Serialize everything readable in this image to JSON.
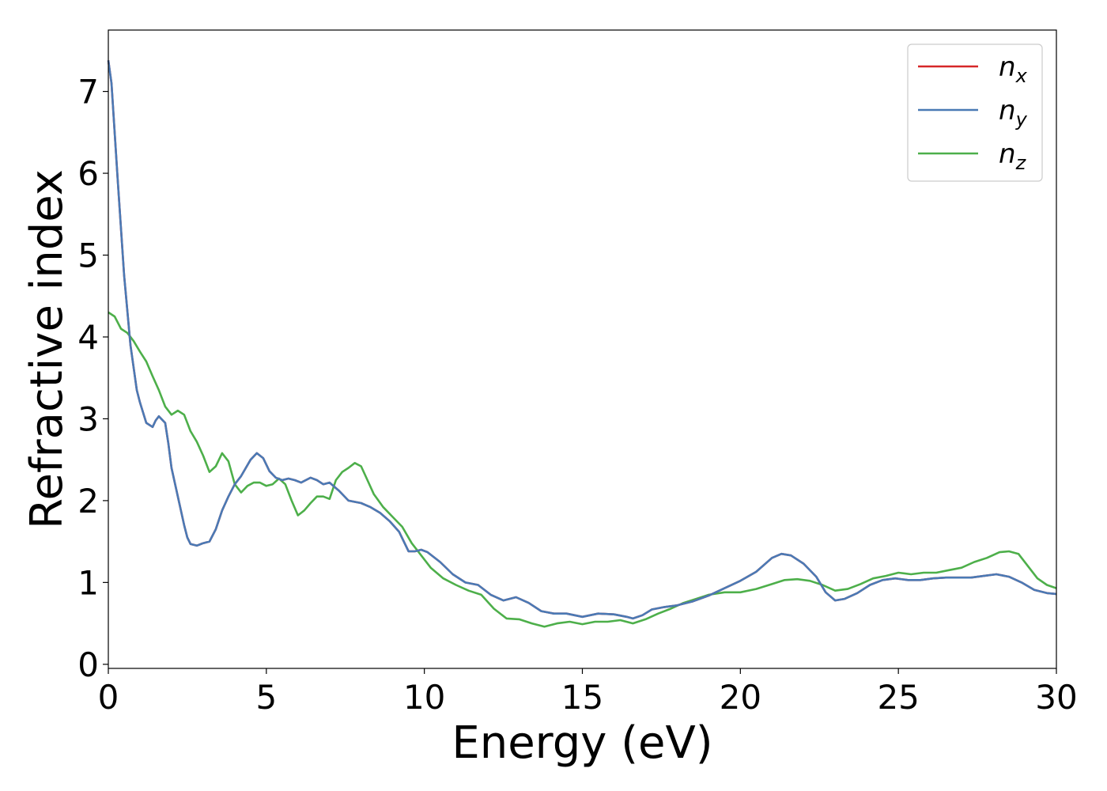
{
  "chart_data": {
    "type": "line",
    "xlabel": "Energy (eV)",
    "ylabel": "Refractive index",
    "xlim": [
      0,
      30
    ],
    "ylim": [
      -0.05,
      7.75
    ],
    "xticks": [
      "0",
      "5",
      "10",
      "15",
      "20",
      "25",
      "30"
    ],
    "yticks": [
      "0",
      "1",
      "2",
      "3",
      "4",
      "5",
      "6",
      "7"
    ],
    "grid": false,
    "legend_position": "top-right",
    "series": [
      {
        "name": "n",
        "sub": "x",
        "color": "#d62728",
        "x": [
          0,
          0.1,
          0.3,
          0.5,
          0.7,
          0.9,
          1.0,
          1.2,
          1.4,
          1.5,
          1.6,
          1.8,
          1.9,
          2.0,
          2.2,
          2.4,
          2.5,
          2.6,
          2.8,
          3.0,
          3.2,
          3.4,
          3.6,
          3.8,
          4.0,
          4.2,
          4.5,
          4.7,
          4.9,
          5.1,
          5.3,
          5.5,
          5.7,
          5.9,
          6.1,
          6.4,
          6.6,
          6.8,
          7.0,
          7.3,
          7.6,
          8.0,
          8.3,
          8.6,
          8.9,
          9.2,
          9.5,
          9.7,
          9.9,
          10.1,
          10.5,
          10.9,
          11.3,
          11.7,
          12.1,
          12.5,
          12.9,
          13.3,
          13.7,
          14.1,
          14.5,
          15.0,
          15.5,
          16.0,
          16.4,
          16.6,
          16.9,
          17.2,
          17.6,
          18.0,
          18.5,
          19.0,
          19.5,
          20.0,
          20.5,
          21.0,
          21.3,
          21.6,
          22.0,
          22.4,
          22.7,
          23.0,
          23.3,
          23.7,
          24.1,
          24.5,
          24.9,
          25.3,
          25.7,
          26.1,
          26.5,
          26.9,
          27.3,
          27.7,
          28.1,
          28.5,
          28.9,
          29.3,
          29.7,
          30.0
        ],
        "y": [
          7.38,
          7.1,
          5.9,
          4.75,
          3.9,
          3.35,
          3.2,
          2.95,
          2.9,
          2.98,
          3.03,
          2.95,
          2.7,
          2.4,
          2.05,
          1.7,
          1.55,
          1.47,
          1.45,
          1.48,
          1.5,
          1.65,
          1.88,
          2.05,
          2.2,
          2.3,
          2.5,
          2.58,
          2.52,
          2.36,
          2.28,
          2.25,
          2.27,
          2.25,
          2.22,
          2.28,
          2.25,
          2.2,
          2.22,
          2.12,
          2.0,
          1.97,
          1.92,
          1.85,
          1.75,
          1.62,
          1.38,
          1.38,
          1.4,
          1.37,
          1.25,
          1.1,
          1.0,
          0.97,
          0.85,
          0.78,
          0.82,
          0.75,
          0.65,
          0.62,
          0.62,
          0.58,
          0.62,
          0.61,
          0.58,
          0.56,
          0.6,
          0.67,
          0.7,
          0.72,
          0.77,
          0.84,
          0.93,
          1.02,
          1.13,
          1.3,
          1.35,
          1.33,
          1.23,
          1.07,
          0.88,
          0.78,
          0.8,
          0.87,
          0.97,
          1.03,
          1.05,
          1.03,
          1.03,
          1.05,
          1.06,
          1.06,
          1.06,
          1.08,
          1.1,
          1.07,
          1.0,
          0.91,
          0.87,
          0.86
        ]
      },
      {
        "name": "n",
        "sub": "y",
        "color": "#4a7ab5",
        "x": [
          0,
          0.1,
          0.3,
          0.5,
          0.7,
          0.9,
          1.0,
          1.2,
          1.4,
          1.5,
          1.6,
          1.8,
          1.9,
          2.0,
          2.2,
          2.4,
          2.5,
          2.6,
          2.8,
          3.0,
          3.2,
          3.4,
          3.6,
          3.8,
          4.0,
          4.2,
          4.5,
          4.7,
          4.9,
          5.1,
          5.3,
          5.5,
          5.7,
          5.9,
          6.1,
          6.4,
          6.6,
          6.8,
          7.0,
          7.3,
          7.6,
          8.0,
          8.3,
          8.6,
          8.9,
          9.2,
          9.5,
          9.7,
          9.9,
          10.1,
          10.5,
          10.9,
          11.3,
          11.7,
          12.1,
          12.5,
          12.9,
          13.3,
          13.7,
          14.1,
          14.5,
          15.0,
          15.5,
          16.0,
          16.4,
          16.6,
          16.9,
          17.2,
          17.6,
          18.0,
          18.5,
          19.0,
          19.5,
          20.0,
          20.5,
          21.0,
          21.3,
          21.6,
          22.0,
          22.4,
          22.7,
          23.0,
          23.3,
          23.7,
          24.1,
          24.5,
          24.9,
          25.3,
          25.7,
          26.1,
          26.5,
          26.9,
          27.3,
          27.7,
          28.1,
          28.5,
          28.9,
          29.3,
          29.7,
          30.0
        ],
        "y": [
          7.38,
          7.1,
          5.9,
          4.75,
          3.9,
          3.35,
          3.2,
          2.95,
          2.9,
          2.98,
          3.03,
          2.95,
          2.7,
          2.4,
          2.05,
          1.7,
          1.55,
          1.47,
          1.45,
          1.48,
          1.5,
          1.65,
          1.88,
          2.05,
          2.2,
          2.3,
          2.5,
          2.58,
          2.52,
          2.36,
          2.28,
          2.25,
          2.27,
          2.25,
          2.22,
          2.28,
          2.25,
          2.2,
          2.22,
          2.12,
          2.0,
          1.97,
          1.92,
          1.85,
          1.75,
          1.62,
          1.38,
          1.38,
          1.4,
          1.37,
          1.25,
          1.1,
          1.0,
          0.97,
          0.85,
          0.78,
          0.82,
          0.75,
          0.65,
          0.62,
          0.62,
          0.58,
          0.62,
          0.61,
          0.58,
          0.56,
          0.6,
          0.67,
          0.7,
          0.72,
          0.77,
          0.84,
          0.93,
          1.02,
          1.13,
          1.3,
          1.35,
          1.33,
          1.23,
          1.07,
          0.88,
          0.78,
          0.8,
          0.87,
          0.97,
          1.03,
          1.05,
          1.03,
          1.03,
          1.05,
          1.06,
          1.06,
          1.06,
          1.08,
          1.1,
          1.07,
          1.0,
          0.91,
          0.87,
          0.86
        ]
      },
      {
        "name": "n",
        "sub": "z",
        "color": "#4daf4a",
        "x": [
          0,
          0.2,
          0.4,
          0.6,
          0.8,
          1.0,
          1.2,
          1.4,
          1.6,
          1.8,
          2.0,
          2.2,
          2.4,
          2.6,
          2.8,
          3.0,
          3.2,
          3.4,
          3.6,
          3.8,
          4.0,
          4.2,
          4.4,
          4.6,
          4.8,
          5.0,
          5.2,
          5.4,
          5.6,
          5.8,
          6.0,
          6.2,
          6.4,
          6.6,
          6.8,
          7.0,
          7.2,
          7.4,
          7.6,
          7.8,
          8.0,
          8.2,
          8.4,
          8.7,
          9.0,
          9.3,
          9.6,
          9.9,
          10.2,
          10.6,
          11.0,
          11.4,
          11.8,
          12.2,
          12.6,
          13.0,
          13.4,
          13.8,
          14.2,
          14.6,
          15.0,
          15.4,
          15.8,
          16.2,
          16.6,
          17.0,
          17.4,
          17.8,
          18.2,
          18.6,
          19.0,
          19.5,
          20.0,
          20.5,
          21.0,
          21.4,
          21.8,
          22.2,
          22.6,
          23.0,
          23.4,
          23.8,
          24.2,
          24.6,
          25.0,
          25.4,
          25.8,
          26.2,
          26.6,
          27.0,
          27.4,
          27.8,
          28.2,
          28.5,
          28.8,
          29.1,
          29.4,
          29.7,
          30.0
        ],
        "y": [
          4.3,
          4.25,
          4.1,
          4.05,
          3.95,
          3.82,
          3.7,
          3.52,
          3.35,
          3.15,
          3.05,
          3.1,
          3.05,
          2.85,
          2.72,
          2.55,
          2.35,
          2.42,
          2.58,
          2.48,
          2.2,
          2.1,
          2.18,
          2.22,
          2.22,
          2.18,
          2.2,
          2.27,
          2.2,
          2.0,
          1.82,
          1.88,
          1.97,
          2.05,
          2.05,
          2.02,
          2.25,
          2.35,
          2.4,
          2.46,
          2.42,
          2.25,
          2.08,
          1.92,
          1.8,
          1.68,
          1.48,
          1.33,
          1.18,
          1.05,
          0.97,
          0.9,
          0.85,
          0.68,
          0.56,
          0.55,
          0.5,
          0.46,
          0.5,
          0.52,
          0.49,
          0.52,
          0.52,
          0.54,
          0.5,
          0.55,
          0.62,
          0.68,
          0.75,
          0.8,
          0.85,
          0.88,
          0.88,
          0.92,
          0.98,
          1.03,
          1.04,
          1.02,
          0.97,
          0.9,
          0.92,
          0.98,
          1.05,
          1.08,
          1.12,
          1.1,
          1.12,
          1.12,
          1.15,
          1.18,
          1.25,
          1.3,
          1.37,
          1.38,
          1.35,
          1.2,
          1.05,
          0.97,
          0.93
        ]
      }
    ]
  }
}
